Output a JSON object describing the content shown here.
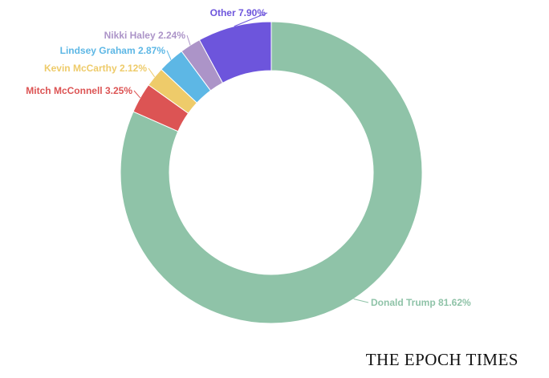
{
  "chart_data": {
    "type": "pie",
    "subtype": "donut",
    "title": "",
    "slices": [
      {
        "name": "Donald Trump",
        "value": 81.62,
        "label": "Donald Trump 81.62%",
        "color": "#8fc3a8"
      },
      {
        "name": "Mitch McConnell",
        "value": 3.25,
        "label": "Mitch McConnell 3.25%",
        "color": "#dc5454"
      },
      {
        "name": "Kevin McCarthy",
        "value": 2.12,
        "label": "Kevin McCarthy 2.12%",
        "color": "#eecb6a"
      },
      {
        "name": "Lindsey Graham",
        "value": 2.87,
        "label": "Lindsey Graham 2.87%",
        "color": "#5db7e5"
      },
      {
        "name": "Nikki Haley",
        "value": 2.24,
        "label": "Nikki Haley 2.24%",
        "color": "#ac94c8"
      },
      {
        "name": "Other",
        "value": 7.9,
        "label": "Other 7.90%",
        "color": "#6d55dc"
      }
    ]
  },
  "branding": {
    "publisher": "THE EPOCH TIMES"
  }
}
